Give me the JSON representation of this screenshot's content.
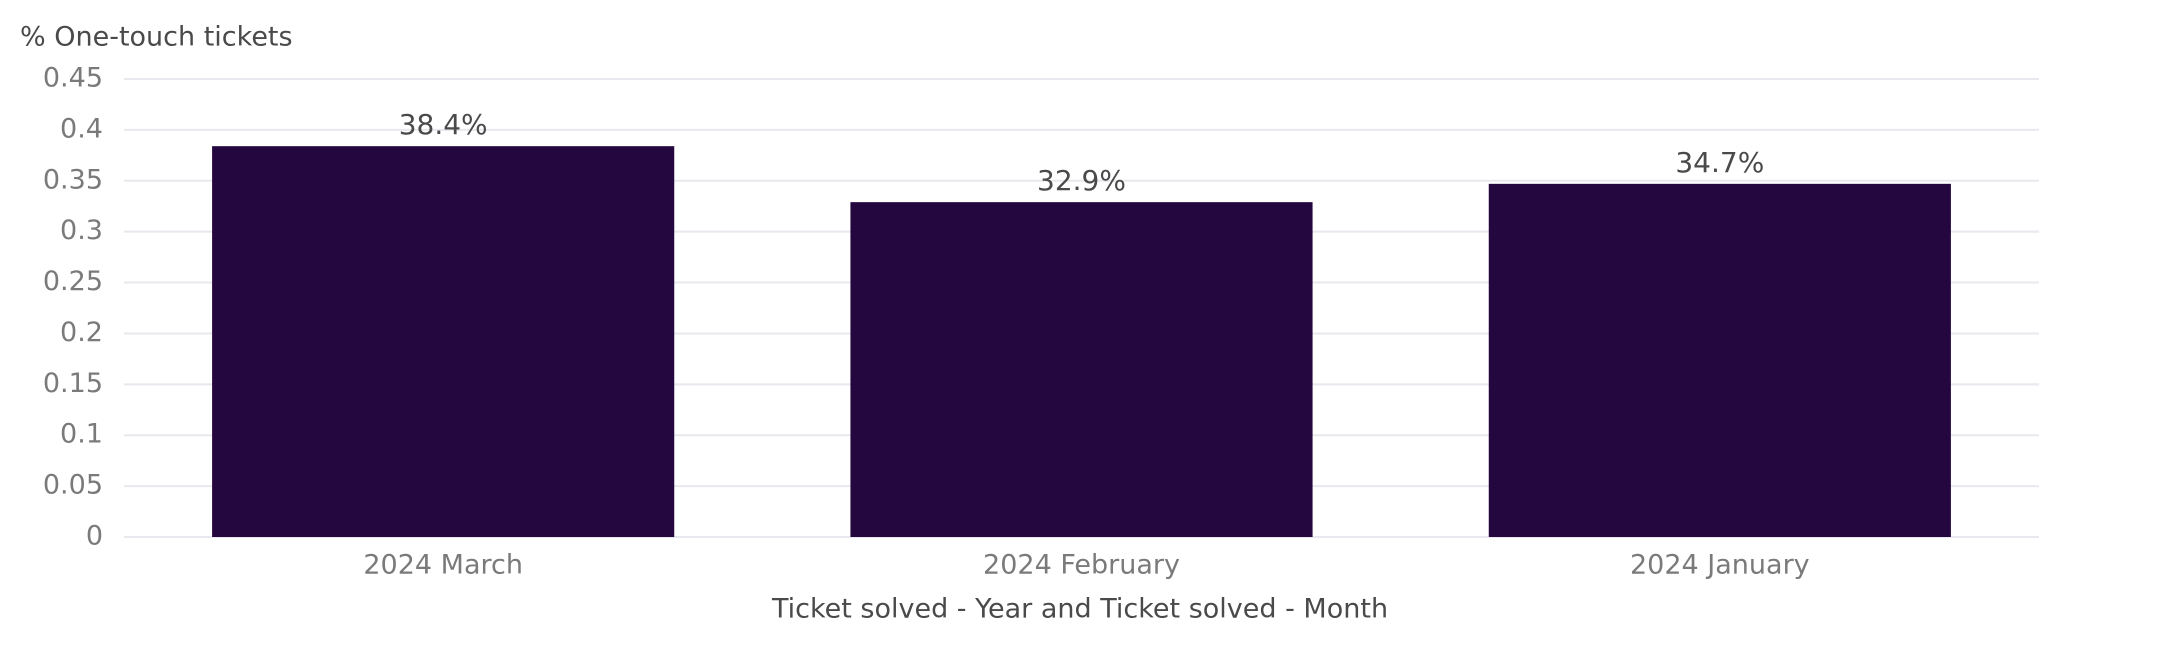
{
  "chart_data": {
    "type": "bar",
    "title": "% One-touch tickets",
    "x_label": "Ticket solved - Year and Ticket solved - Month",
    "categories": [
      "2024 March",
      "2024 February",
      "2024 January"
    ],
    "values": [
      0.384,
      0.329,
      0.347
    ],
    "value_labels": [
      "38.4%",
      "32.9%",
      "34.7%"
    ],
    "color": "#250740",
    "ylim": [
      0,
      0.45
    ],
    "yticks": [
      0,
      0.05,
      0.1,
      0.15,
      0.2,
      0.25,
      0.3,
      0.35,
      0.4,
      0.45
    ],
    "grid": true
  }
}
